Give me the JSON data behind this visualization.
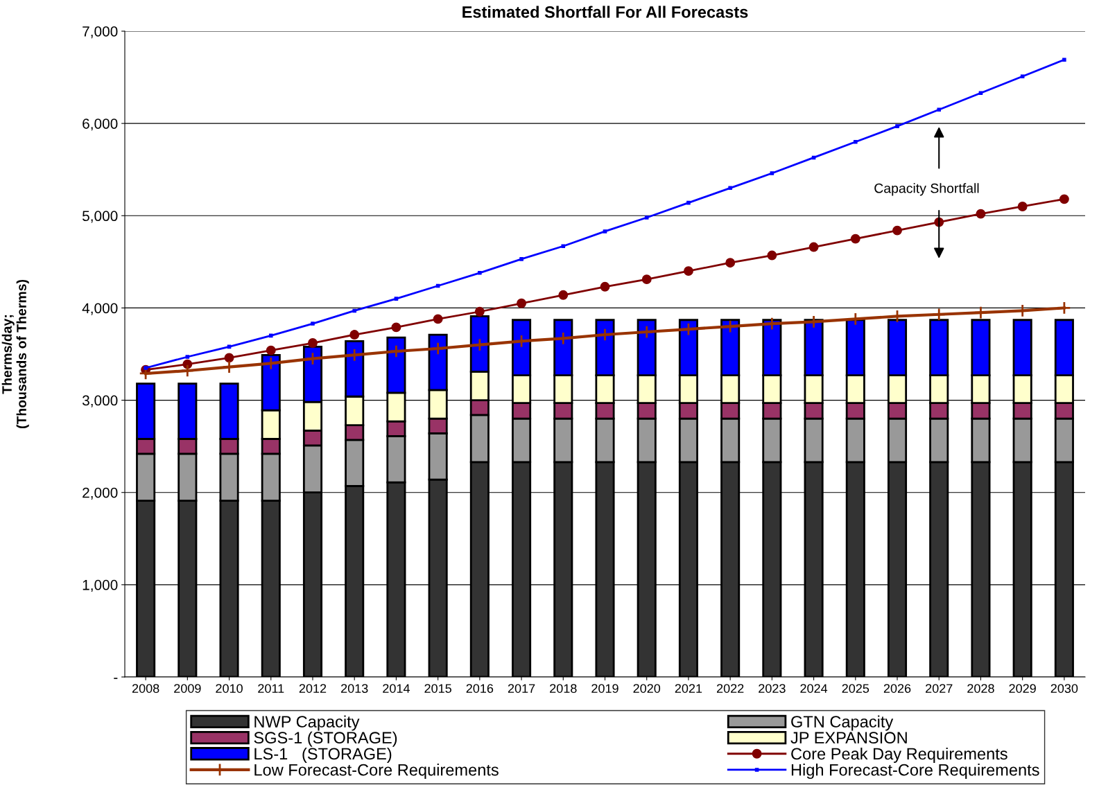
{
  "chart_data": {
    "type": "bar",
    "stacked": true,
    "title": "Estimated Shortfall For All Forecasts",
    "ylabel": "Therms/day;\n(Thousands of Therms)",
    "categories": [
      "2008",
      "2009",
      "2010",
      "2011",
      "2012",
      "2013",
      "2014",
      "2015",
      "2016",
      "2017",
      "2018",
      "2019",
      "2020",
      "2021",
      "2022",
      "2023",
      "2024",
      "2025",
      "2026",
      "2027",
      "2028",
      "2029",
      "2030"
    ],
    "series": [
      {
        "name": "NWP Capacity",
        "color": "#333333",
        "values": [
          1910,
          1910,
          1910,
          1910,
          2000,
          2070,
          2110,
          2140,
          2330,
          2330,
          2330,
          2330,
          2330,
          2330,
          2330,
          2330,
          2330,
          2330,
          2330,
          2330,
          2330,
          2330,
          2330
        ]
      },
      {
        "name": "GTN Capacity",
        "color": "#999999",
        "values": [
          510,
          510,
          510,
          510,
          510,
          500,
          500,
          500,
          510,
          470,
          470,
          470,
          470,
          470,
          470,
          470,
          470,
          470,
          470,
          470,
          470,
          470,
          470
        ]
      },
      {
        "name": "SGS-1 (STORAGE)",
        "color": "#993366",
        "values": [
          160,
          160,
          160,
          160,
          160,
          160,
          160,
          160,
          160,
          170,
          170,
          170,
          170,
          170,
          170,
          170,
          170,
          170,
          170,
          170,
          170,
          170,
          170
        ]
      },
      {
        "name": "JP EXPANSION",
        "color": "#ffffcc",
        "values": [
          0,
          0,
          0,
          310,
          310,
          310,
          310,
          310,
          310,
          300,
          300,
          300,
          300,
          300,
          300,
          300,
          300,
          300,
          300,
          300,
          300,
          300,
          300
        ]
      },
      {
        "name": "LS-1   (STORAGE)",
        "color": "#0000ff",
        "values": [
          600,
          600,
          600,
          600,
          600,
          600,
          600,
          600,
          600,
          600,
          600,
          600,
          600,
          600,
          600,
          600,
          600,
          600,
          600,
          600,
          600,
          600,
          600
        ]
      },
      {
        "name": "Core Peak Day Requirements",
        "type": "line",
        "marker": "circle",
        "color": "#800000",
        "values": [
          3330,
          3390,
          3460,
          3540,
          3620,
          3710,
          3790,
          3880,
          3960,
          4050,
          4140,
          4230,
          4310,
          4400,
          4490,
          4570,
          4660,
          4750,
          4840,
          4930,
          5020,
          5100,
          5180
        ]
      },
      {
        "name": "Low Forecast-Core Requirements",
        "type": "line",
        "marker": "cross",
        "color": "#993300",
        "values": [
          3290,
          3320,
          3360,
          3400,
          3450,
          3490,
          3530,
          3560,
          3600,
          3640,
          3670,
          3710,
          3740,
          3770,
          3800,
          3830,
          3850,
          3880,
          3910,
          3930,
          3950,
          3970,
          4000
        ]
      },
      {
        "name": "High Forecast-Core Requirements",
        "type": "line",
        "marker": "square",
        "color": "#0000ff",
        "values": [
          3350,
          3470,
          3580,
          3700,
          3830,
          3970,
          4100,
          4240,
          4380,
          4530,
          4670,
          4830,
          4980,
          5140,
          5300,
          5460,
          5630,
          5800,
          5970,
          6150,
          6330,
          6510,
          6690
        ]
      }
    ],
    "ylim": [
      0,
      7000
    ],
    "yticks": [
      {
        "value": 0,
        "label": "-"
      },
      {
        "value": 1000,
        "label": "1,000"
      },
      {
        "value": 2000,
        "label": "2,000"
      },
      {
        "value": 3000,
        "label": "3,000"
      },
      {
        "value": 4000,
        "label": "4,000"
      },
      {
        "value": 5000,
        "label": "5,000"
      },
      {
        "value": 6000,
        "label": "6,000"
      },
      {
        "value": 7000,
        "label": "7,000"
      }
    ],
    "grid": "y",
    "legend": "bottom",
    "annotations": [
      "Capacity Shortfall"
    ]
  }
}
